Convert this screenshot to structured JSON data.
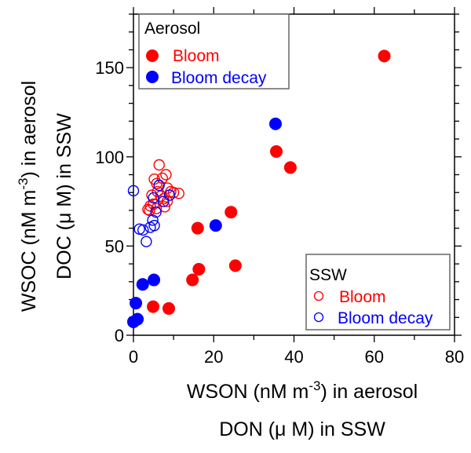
{
  "chart_data": {
    "type": "scatter",
    "title": "",
    "xlabel": {
      "line1_main": "WSON (nM m",
      "line1_sup": "-3",
      "line1_end": ") in aerosol",
      "line2": "DON (μ M) in SSW"
    },
    "ylabel": {
      "line1_main": "WSOC (nM m",
      "line1_sup": "-3",
      "line1_end": ") in aerosol",
      "line2": "DOC (μ M) in SSW"
    },
    "xlim": [
      0,
      80
    ],
    "ylim": [
      0,
      180
    ],
    "xticks": [
      0,
      20,
      40,
      60,
      80
    ],
    "xtick_labels": [
      "0",
      "20",
      "40",
      "60",
      "80"
    ],
    "xminor": 10,
    "yticks": [
      0,
      50,
      100,
      150
    ],
    "ytick_labels": [
      "0",
      "50",
      "100",
      "150"
    ],
    "yminor": 10,
    "grid": false,
    "legends": [
      {
        "title": "Aerosol",
        "placement": "top-left",
        "entries": [
          {
            "label": "Bloom",
            "color": "#ff0000",
            "marker": "filled-circle"
          },
          {
            "label": "Bloom decay",
            "color": "#0000ff",
            "marker": "filled-circle"
          }
        ]
      },
      {
        "title": "SSW",
        "placement": "bottom-right",
        "entries": [
          {
            "label": "Bloom",
            "color": "#ff0000",
            "marker": "open-circle"
          },
          {
            "label": "Bloom decay",
            "color": "#0000ff",
            "marker": "open-circle"
          }
        ]
      }
    ],
    "series": [
      {
        "name": "SSW Bloom",
        "group": "SSW",
        "color": "#ff0000",
        "marker": "open-circle",
        "points": [
          [
            6.4,
            95.5
          ],
          [
            8.1,
            90.0
          ],
          [
            7.2,
            88.0
          ],
          [
            5.2,
            87.5
          ],
          [
            5.8,
            85.0
          ],
          [
            8.5,
            82.5
          ],
          [
            10.0,
            80.0
          ],
          [
            11.3,
            79.5
          ],
          [
            4.6,
            78.5
          ],
          [
            6.0,
            80.5
          ],
          [
            7.5,
            76.5
          ],
          [
            9.3,
            80.5
          ],
          [
            5.0,
            73.5
          ],
          [
            4.2,
            72.5
          ],
          [
            3.6,
            70.5
          ],
          [
            5.7,
            71.0
          ],
          [
            7.8,
            72.0
          ],
          [
            8.4,
            75.0
          ],
          [
            4.0,
            70.0
          ],
          [
            6.8,
            78.0
          ]
        ]
      },
      {
        "name": "SSW Bloom decay",
        "group": "SSW",
        "color": "#0000ff",
        "marker": "open-circle",
        "points": [
          [
            0.0,
            81.0
          ],
          [
            6.4,
            84.0
          ],
          [
            5.0,
            77.0
          ],
          [
            9.0,
            78.5
          ],
          [
            7.5,
            75.0
          ],
          [
            5.6,
            69.0
          ],
          [
            4.8,
            64.5
          ],
          [
            5.2,
            61.5
          ],
          [
            4.2,
            60.5
          ],
          [
            1.5,
            59.5
          ],
          [
            2.4,
            59.0
          ],
          [
            3.2,
            52.5
          ]
        ]
      },
      {
        "name": "Aerosol Bloom",
        "group": "Aerosol",
        "color": "#ff0000",
        "marker": "filled-circle",
        "points": [
          [
            62.5,
            156.5
          ],
          [
            35.6,
            103.0
          ],
          [
            39.1,
            94.0
          ],
          [
            24.3,
            69.0
          ],
          [
            16.0,
            60.0
          ],
          [
            25.4,
            39.0
          ],
          [
            16.3,
            37.0
          ],
          [
            14.7,
            31.0
          ],
          [
            4.9,
            16.0
          ],
          [
            8.8,
            15.0
          ]
        ]
      },
      {
        "name": "Aerosol Bloom decay",
        "group": "Aerosol",
        "color": "#0000ff",
        "marker": "filled-circle",
        "points": [
          [
            35.4,
            118.5
          ],
          [
            20.5,
            61.5
          ],
          [
            5.1,
            31.0
          ],
          [
            2.3,
            28.5
          ],
          [
            0.6,
            18.0
          ],
          [
            1.0,
            9.0
          ],
          [
            0.0,
            7.5
          ]
        ]
      }
    ]
  }
}
